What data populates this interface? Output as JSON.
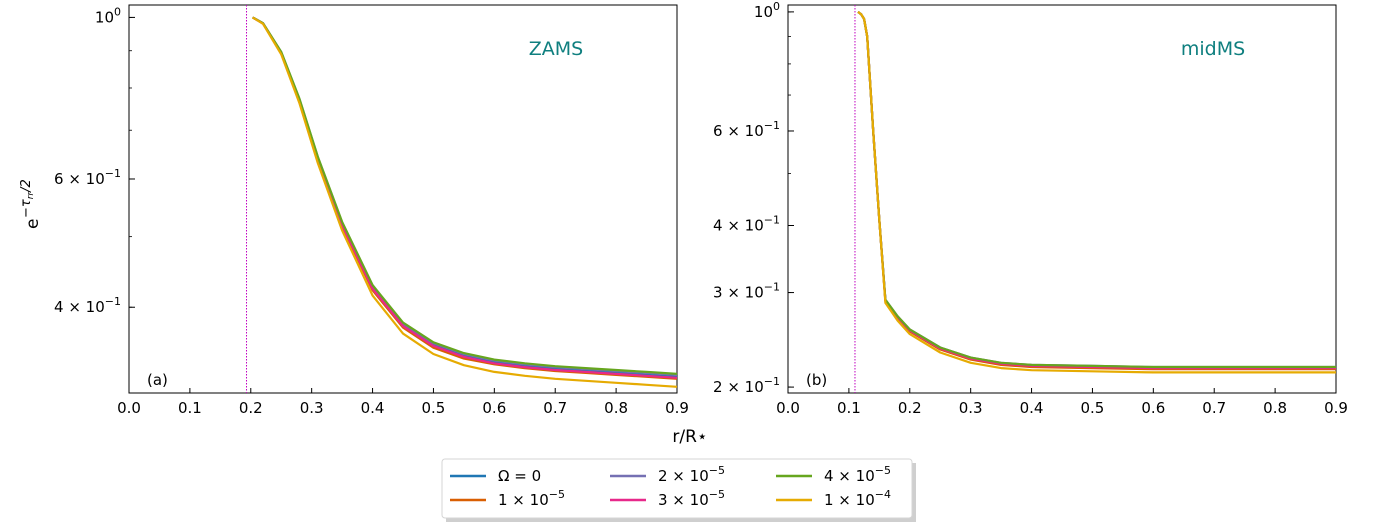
{
  "chart_data": [
    {
      "type": "line",
      "panel_label": "(a)",
      "annotation": "ZAMS",
      "xlabel": "r/R⋆",
      "ylabel": "e^{-τ_rr/2}",
      "xlim": [
        0.0,
        0.9
      ],
      "ylim": [
        0.305,
        1.04
      ],
      "yscale": "log",
      "xticks": [
        "0.0",
        "0.1",
        "0.2",
        "0.3",
        "0.4",
        "0.5",
        "0.6",
        "0.7",
        "0.8",
        "0.9"
      ],
      "yticks": [
        {
          "value": 1.0,
          "mant": "",
          "exp": "0"
        },
        {
          "value": 0.6,
          "mant": "6",
          "exp": "−1"
        },
        {
          "value": 0.4,
          "mant": "4",
          "exp": "−1"
        }
      ],
      "vline_x": 0.193,
      "x": [
        0.203,
        0.22,
        0.25,
        0.28,
        0.31,
        0.35,
        0.4,
        0.45,
        0.5,
        0.55,
        0.6,
        0.65,
        0.7,
        0.75,
        0.8,
        0.85,
        0.9
      ],
      "series": [
        {
          "values": [
            1.0,
            0.982,
            0.895,
            0.77,
            0.64,
            0.52,
            0.425,
            0.378,
            0.355,
            0.343,
            0.336,
            0.332,
            0.329,
            0.327,
            0.325,
            0.323,
            0.321
          ]
        },
        {
          "values": [
            1.0,
            0.981,
            0.893,
            0.767,
            0.637,
            0.517,
            0.422,
            0.375,
            0.352,
            0.34,
            0.334,
            0.33,
            0.327,
            0.325,
            0.323,
            0.321,
            0.319
          ]
        },
        {
          "values": [
            1.0,
            0.982,
            0.896,
            0.772,
            0.643,
            0.523,
            0.428,
            0.38,
            0.357,
            0.345,
            0.338,
            0.334,
            0.331,
            0.329,
            0.327,
            0.325,
            0.323
          ]
        },
        {
          "values": [
            1.0,
            0.981,
            0.894,
            0.769,
            0.639,
            0.519,
            0.424,
            0.377,
            0.354,
            0.342,
            0.335,
            0.331,
            0.328,
            0.326,
            0.324,
            0.322,
            0.32
          ]
        },
        {
          "values": [
            1.0,
            0.982,
            0.897,
            0.773,
            0.644,
            0.524,
            0.429,
            0.381,
            0.358,
            0.346,
            0.339,
            0.335,
            0.332,
            0.33,
            0.328,
            0.326,
            0.324
          ]
        },
        {
          "values": [
            1.0,
            0.98,
            0.89,
            0.762,
            0.631,
            0.51,
            0.415,
            0.368,
            0.345,
            0.333,
            0.326,
            0.322,
            0.319,
            0.317,
            0.315,
            0.313,
            0.311
          ]
        }
      ]
    },
    {
      "type": "line",
      "panel_label": "(b)",
      "annotation": "midMS",
      "xlabel": "r/R⋆",
      "xlim": [
        0.0,
        0.9
      ],
      "ylim": [
        0.195,
        1.03
      ],
      "yscale": "log",
      "xticks": [
        "0.0",
        "0.1",
        "0.2",
        "0.3",
        "0.4",
        "0.5",
        "0.6",
        "0.7",
        "0.8",
        "0.9"
      ],
      "yticks": [
        {
          "value": 1.0,
          "mant": "",
          "exp": "0"
        },
        {
          "value": 0.6,
          "mant": "6",
          "exp": "−1"
        },
        {
          "value": 0.4,
          "mant": "4",
          "exp": "−1"
        },
        {
          "value": 0.3,
          "mant": "3",
          "exp": "−1"
        },
        {
          "value": 0.2,
          "mant": "2",
          "exp": "−1"
        }
      ],
      "vline_x": 0.11,
      "x": [
        0.115,
        0.12,
        0.125,
        0.13,
        0.14,
        0.15,
        0.16,
        0.18,
        0.2,
        0.25,
        0.3,
        0.35,
        0.4,
        0.5,
        0.6,
        0.7,
        0.8,
        0.9
      ],
      "series": [
        {
          "values": [
            1.0,
            0.99,
            0.97,
            0.9,
            0.6,
            0.41,
            0.29,
            0.27,
            0.255,
            0.236,
            0.226,
            0.221,
            0.219,
            0.218,
            0.217,
            0.217,
            0.217,
            0.217
          ]
        },
        {
          "values": [
            1.0,
            0.99,
            0.97,
            0.9,
            0.6,
            0.41,
            0.289,
            0.269,
            0.254,
            0.235,
            0.225,
            0.22,
            0.218,
            0.217,
            0.216,
            0.216,
            0.216,
            0.216
          ]
        },
        {
          "values": [
            1.0,
            0.99,
            0.97,
            0.9,
            0.6,
            0.41,
            0.291,
            0.271,
            0.256,
            0.237,
            0.227,
            0.222,
            0.22,
            0.219,
            0.218,
            0.218,
            0.218,
            0.218
          ]
        },
        {
          "values": [
            1.0,
            0.99,
            0.97,
            0.9,
            0.6,
            0.41,
            0.29,
            0.27,
            0.255,
            0.236,
            0.226,
            0.221,
            0.219,
            0.218,
            0.217,
            0.217,
            0.217,
            0.217
          ]
        },
        {
          "values": [
            1.0,
            0.99,
            0.97,
            0.9,
            0.6,
            0.41,
            0.291,
            0.271,
            0.256,
            0.237,
            0.227,
            0.222,
            0.22,
            0.219,
            0.218,
            0.218,
            0.218,
            0.218
          ]
        },
        {
          "values": [
            1.0,
            0.99,
            0.97,
            0.9,
            0.6,
            0.41,
            0.287,
            0.266,
            0.251,
            0.232,
            0.222,
            0.217,
            0.215,
            0.214,
            0.213,
            0.213,
            0.213,
            0.213
          ]
        }
      ]
    }
  ],
  "legend": {
    "entries": [
      {
        "text": "Ω = 0",
        "mant": "",
        "exp": "",
        "color": "#1f77b4"
      },
      {
        "text": "",
        "mant": "1 × 10",
        "exp": "−5",
        "color": "#d95f02"
      },
      {
        "text": "",
        "mant": "2 × 10",
        "exp": "−5",
        "color": "#7570b3"
      },
      {
        "text": "",
        "mant": "3 × 10",
        "exp": "−5",
        "color": "#e7298a"
      },
      {
        "text": "",
        "mant": "4 × 10",
        "exp": "−5",
        "color": "#66a61e"
      },
      {
        "text": "",
        "mant": "1 × 10",
        "exp": "−4",
        "color": "#e6ab02"
      }
    ]
  },
  "colors": {
    "annotation": "#0f7f7f",
    "vline": "#c000c0"
  }
}
